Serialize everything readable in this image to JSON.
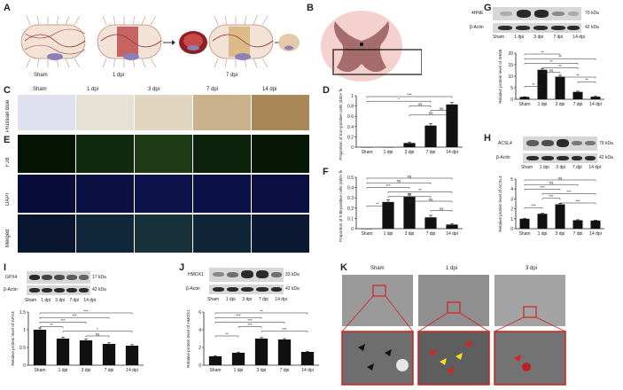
{
  "panels": {
    "A": {
      "letter": "A",
      "labels": [
        "Sham",
        "1 dpi",
        "7 dpi"
      ]
    },
    "B": {
      "letter": "B"
    },
    "C": {
      "letter": "C",
      "row_label": "Prussian blue",
      "cols": [
        "Sham",
        "1 dpi",
        "3 dpi",
        "7 dpi",
        "14 dpi"
      ]
    },
    "D": {
      "letter": "D"
    },
    "E": {
      "letter": "E",
      "rows": [
        "FJB",
        "DAPI",
        "Merged"
      ]
    },
    "F": {
      "letter": "F"
    },
    "G": {
      "letter": "G",
      "blots": [
        {
          "name": "4HNE",
          "kda": "70 kDa"
        },
        {
          "name": "β-Actin",
          "kda": "42 kDa"
        }
      ],
      "lanes": [
        "Sham",
        "1 dpi",
        "3 dpi",
        "7 dpi",
        "14 dpi"
      ]
    },
    "H": {
      "letter": "H",
      "blots": [
        {
          "name": "ACSL4",
          "kda": "79 kDa"
        },
        {
          "name": "β-Actin",
          "kda": "42 kDa"
        }
      ],
      "lanes": [
        "Sham",
        "1 dpi",
        "3 dpi",
        "7 dpi",
        "14 dpi"
      ]
    },
    "I": {
      "letter": "I",
      "blots": [
        {
          "name": "GPX4",
          "kda": "17 kDa"
        },
        {
          "name": "β-Actin",
          "kda": "42 kDa"
        }
      ],
      "lanes": [
        "Sham",
        "1 dpi",
        "3 dpi",
        "7 dpi",
        "14 dpi"
      ]
    },
    "J": {
      "letter": "J",
      "blots": [
        {
          "name": "HMOX1",
          "kda": "33 kDa"
        },
        {
          "name": "β-Actin",
          "kda": "42 kDa"
        }
      ],
      "lanes": [
        "Sham",
        "1 dpi",
        "3 dpi",
        "7 dpi",
        "14 dpi"
      ]
    },
    "K": {
      "letter": "K",
      "cols": [
        "Sham",
        "1 dpi",
        "3 dpi"
      ]
    }
  },
  "chart_data": [
    {
      "id": "D",
      "type": "bar",
      "categories": [
        "Sham",
        "1 dpi",
        "3 dpi",
        "7 dpi",
        "14 dpi"
      ],
      "values": [
        0,
        0,
        0.08,
        0.42,
        0.83
      ],
      "errors": [
        0,
        0,
        0.02,
        0.04,
        0.04
      ],
      "ylim": [
        0,
        1.0
      ],
      "yticks": [
        0,
        0.2,
        0.4,
        0.6,
        0.8,
        1.0
      ],
      "ylabel": "Proportion of iron-positive cells (400× field)",
      "significance": [
        "***",
        "*",
        "ns",
        "ns",
        "ns"
      ]
    },
    {
      "id": "F",
      "type": "bar",
      "categories": [
        "Sham",
        "1 dpi",
        "3 dpi",
        "7 dpi",
        "14 dpi"
      ],
      "values": [
        0,
        0.26,
        0.31,
        0.11,
        0.04
      ],
      "errors": [
        0,
        0.02,
        0.03,
        0.02,
        0.01
      ],
      "ylim": [
        0,
        0.5
      ],
      "yticks": [
        0,
        0.1,
        0.2,
        0.3,
        0.4,
        0.5
      ],
      "ylabel": "Proportion of FJB-positive cells (400× field)",
      "significance": [
        "ns",
        "ns",
        "***",
        "**",
        "ns",
        "ns",
        "**",
        "ns"
      ]
    },
    {
      "id": "G",
      "type": "bar",
      "categories": [
        "Sham",
        "1 dpi",
        "3 dpi",
        "7 dpi",
        "14 dpi"
      ],
      "values": [
        1.0,
        12.8,
        9.8,
        3.2,
        1.1
      ],
      "errors": [
        0.1,
        0.6,
        0.6,
        0.3,
        0.2
      ],
      "ylim": [
        0,
        20
      ],
      "yticks": [
        0,
        5,
        10,
        15,
        20
      ],
      "ylabel": "Relative protein level of 4HNE",
      "significance": [
        "**",
        "**",
        "**",
        "**",
        "ns",
        "**",
        "**",
        "**"
      ]
    },
    {
      "id": "H",
      "type": "bar",
      "categories": [
        "Sham",
        "1 dpi",
        "3 dpi",
        "7 dpi",
        "14 dpi"
      ],
      "values": [
        1.0,
        1.5,
        2.45,
        0.85,
        0.82
      ],
      "errors": [
        0.05,
        0.06,
        0.08,
        0.05,
        0.04
      ],
      "ylim": [
        0,
        5
      ],
      "yticks": [
        0,
        1,
        2,
        3,
        4,
        5
      ],
      "ylabel": "Relative protein level of ACSL4",
      "significance": [
        "ns",
        "ns",
        "***",
        "***",
        "***",
        "***",
        "***"
      ]
    },
    {
      "id": "I",
      "type": "bar",
      "categories": [
        "Sham",
        "1 dpi",
        "3 dpi",
        "7 dpi",
        "14 dpi"
      ],
      "values": [
        1.0,
        0.75,
        0.7,
        0.6,
        0.55
      ],
      "errors": [
        0.05,
        0.04,
        0.04,
        0.03,
        0.03
      ],
      "ylim": [
        0,
        1.5
      ],
      "yticks": [
        0,
        0.5,
        1.0,
        1.5
      ],
      "ylabel": "Relative protein level of GPX4",
      "significance": [
        "***",
        "***",
        "***",
        "**",
        "*",
        "ns"
      ]
    },
    {
      "id": "J",
      "type": "bar",
      "categories": [
        "Sham",
        "1 dpi",
        "3 dpi",
        "7 dpi",
        "14 dpi"
      ],
      "values": [
        1.0,
        1.4,
        3.0,
        2.9,
        1.5
      ],
      "errors": [
        0.05,
        0.08,
        0.12,
        0.1,
        0.08
      ],
      "ylim": [
        0,
        6
      ],
      "yticks": [
        0,
        2,
        4,
        6
      ],
      "ylabel": "Relative protein level of HMOX1",
      "significance": [
        "**",
        "***",
        "***",
        "***",
        "***",
        "**"
      ]
    }
  ]
}
